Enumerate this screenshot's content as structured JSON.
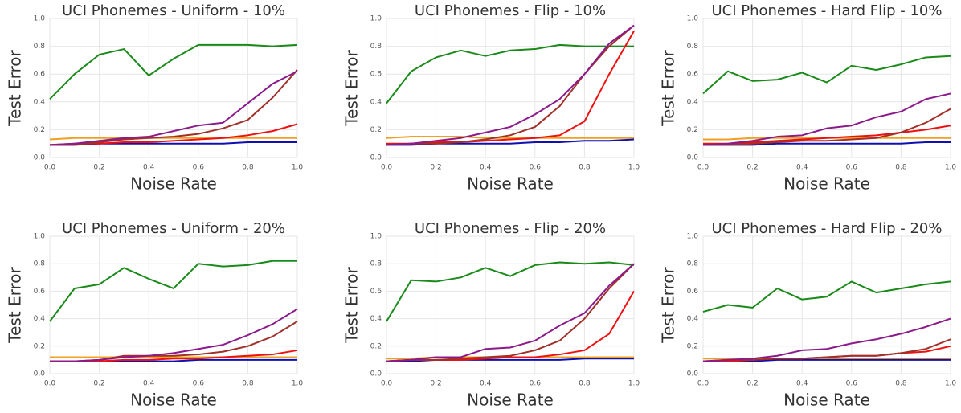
{
  "chart_data": [
    {
      "type": "line",
      "title": "UCI Phonemes - Uniform - 10%",
      "x_label": "Noise Rate",
      "y_label": "Test Error",
      "x": [
        0,
        0.1,
        0.2,
        0.3,
        0.4,
        0.5,
        0.6,
        0.7,
        0.8,
        0.9,
        1
      ],
      "xlim": [
        0,
        1
      ],
      "xticks": [
        {
          "value": 0,
          "label": "0.0"
        },
        0.2,
        0.4,
        0.6,
        0.8,
        {
          "value": 1,
          "label": "1.0"
        }
      ],
      "ylim": [
        0,
        1
      ],
      "yticks": [
        {
          "value": 0,
          "label": "0.0"
        },
        0.2,
        0.4,
        0.6,
        0.8,
        {
          "value": 1,
          "label": "1.0"
        }
      ],
      "grid": true,
      "series": [
        {
          "color": "#1a8a1a",
          "values": [
            0.42,
            0.6,
            0.74,
            0.78,
            0.59,
            0.71,
            0.81,
            0.81,
            0.81,
            0.8,
            0.81
          ]
        },
        {
          "color": "#f0a020",
          "values": [
            0.13,
            0.14,
            0.14,
            0.14,
            0.14,
            0.14,
            0.14,
            0.14,
            0.14,
            0.14,
            0.14
          ]
        },
        {
          "color": "#1010b0",
          "values": [
            0.09,
            0.09,
            0.1,
            0.1,
            0.1,
            0.1,
            0.1,
            0.1,
            0.11,
            0.11,
            0.11
          ]
        },
        {
          "color": "#ee1111",
          "values": [
            0.09,
            0.1,
            0.1,
            0.11,
            0.11,
            0.12,
            0.13,
            0.14,
            0.16,
            0.19,
            0.24
          ]
        },
        {
          "color": "#a0302a",
          "values": [
            0.09,
            0.09,
            0.11,
            0.13,
            0.14,
            0.15,
            0.17,
            0.21,
            0.27,
            0.43,
            0.63
          ]
        },
        {
          "color": "#8b1a8b",
          "values": [
            0.09,
            0.1,
            0.12,
            0.14,
            0.15,
            0.19,
            0.23,
            0.25,
            0.39,
            0.53,
            0.62
          ]
        }
      ]
    },
    {
      "type": "line",
      "title": "UCI Phonemes - Flip - 10%",
      "x_label": "Noise Rate",
      "y_label": "Test Error",
      "x": [
        0,
        0.1,
        0.2,
        0.3,
        0.4,
        0.5,
        0.6,
        0.7,
        0.8,
        0.9,
        1
      ],
      "xlim": [
        0,
        1
      ],
      "xticks": [
        {
          "value": 0,
          "label": "0.0"
        },
        0.2,
        0.4,
        0.6,
        0.8,
        {
          "value": 1,
          "label": "1.0"
        }
      ],
      "ylim": [
        0,
        1
      ],
      "yticks": [
        {
          "value": 0,
          "label": "0.0"
        },
        0.2,
        0.4,
        0.6,
        0.8,
        {
          "value": 1,
          "label": "1.0"
        }
      ],
      "grid": true,
      "series": [
        {
          "color": "#1a8a1a",
          "values": [
            0.39,
            0.62,
            0.72,
            0.77,
            0.73,
            0.77,
            0.78,
            0.81,
            0.8,
            0.8,
            0.8
          ]
        },
        {
          "color": "#f0a020",
          "values": [
            0.14,
            0.15,
            0.15,
            0.15,
            0.14,
            0.14,
            0.14,
            0.14,
            0.14,
            0.14,
            0.14
          ]
        },
        {
          "color": "#1010b0",
          "values": [
            0.09,
            0.09,
            0.1,
            0.1,
            0.1,
            0.1,
            0.11,
            0.11,
            0.12,
            0.12,
            0.13
          ]
        },
        {
          "color": "#ee1111",
          "values": [
            0.1,
            0.1,
            0.11,
            0.11,
            0.12,
            0.13,
            0.14,
            0.16,
            0.26,
            0.6,
            0.91
          ]
        },
        {
          "color": "#a0302a",
          "values": [
            0.09,
            0.1,
            0.1,
            0.11,
            0.13,
            0.16,
            0.22,
            0.37,
            0.6,
            0.8,
            0.95
          ]
        },
        {
          "color": "#8b1a8b",
          "values": [
            0.09,
            0.1,
            0.12,
            0.14,
            0.18,
            0.22,
            0.31,
            0.42,
            0.6,
            0.82,
            0.95
          ]
        }
      ]
    },
    {
      "type": "line",
      "title": "UCI Phonemes - Hard Flip - 10%",
      "x_label": "Noise Rate",
      "y_label": "Test Error",
      "x": [
        0,
        0.1,
        0.2,
        0.3,
        0.4,
        0.5,
        0.6,
        0.7,
        0.8,
        0.9,
        1
      ],
      "xlim": [
        0,
        1
      ],
      "xticks": [
        {
          "value": 0,
          "label": "0.0"
        },
        0.2,
        0.4,
        0.6,
        0.8,
        {
          "value": 1,
          "label": "1.0"
        }
      ],
      "ylim": [
        0,
        1
      ],
      "yticks": [
        {
          "value": 0,
          "label": "0.0"
        },
        0.2,
        0.4,
        0.6,
        0.8,
        {
          "value": 1,
          "label": "1.0"
        }
      ],
      "grid": true,
      "series": [
        {
          "color": "#1a8a1a",
          "values": [
            0.46,
            0.62,
            0.55,
            0.56,
            0.61,
            0.54,
            0.66,
            0.63,
            0.67,
            0.72,
            0.73
          ]
        },
        {
          "color": "#f0a020",
          "values": [
            0.13,
            0.13,
            0.14,
            0.14,
            0.14,
            0.14,
            0.14,
            0.14,
            0.14,
            0.14,
            0.14
          ]
        },
        {
          "color": "#1010b0",
          "values": [
            0.09,
            0.09,
            0.09,
            0.1,
            0.1,
            0.1,
            0.1,
            0.1,
            0.1,
            0.11,
            0.11
          ]
        },
        {
          "color": "#ee1111",
          "values": [
            0.1,
            0.1,
            0.11,
            0.12,
            0.13,
            0.14,
            0.15,
            0.16,
            0.18,
            0.2,
            0.23
          ]
        },
        {
          "color": "#a0302a",
          "values": [
            0.09,
            0.09,
            0.1,
            0.11,
            0.12,
            0.12,
            0.13,
            0.14,
            0.18,
            0.25,
            0.35
          ]
        },
        {
          "color": "#8b1a8b",
          "values": [
            0.09,
            0.1,
            0.12,
            0.15,
            0.16,
            0.21,
            0.23,
            0.29,
            0.33,
            0.42,
            0.46
          ]
        }
      ]
    },
    {
      "type": "line",
      "title": "UCI Phonemes - Uniform - 20%",
      "x_label": "Noise Rate",
      "y_label": "Test Error",
      "x": [
        0,
        0.1,
        0.2,
        0.3,
        0.4,
        0.5,
        0.6,
        0.7,
        0.8,
        0.9,
        1
      ],
      "xlim": [
        0,
        1
      ],
      "xticks": [
        {
          "value": 0,
          "label": "0.0"
        },
        0.2,
        0.4,
        0.6,
        0.8,
        {
          "value": 1,
          "label": "1.0"
        }
      ],
      "ylim": [
        0,
        1
      ],
      "yticks": [
        {
          "value": 0,
          "label": "0.0"
        },
        0.2,
        0.4,
        0.6,
        0.8,
        {
          "value": 1,
          "label": "1.0"
        }
      ],
      "grid": true,
      "series": [
        {
          "color": "#1a8a1a",
          "values": [
            0.38,
            0.62,
            0.65,
            0.77,
            0.69,
            0.62,
            0.8,
            0.78,
            0.79,
            0.82,
            0.82
          ]
        },
        {
          "color": "#f0a020",
          "values": [
            0.12,
            0.12,
            0.12,
            0.12,
            0.12,
            0.12,
            0.12,
            0.12,
            0.12,
            0.12,
            0.12
          ]
        },
        {
          "color": "#1010b0",
          "values": [
            0.09,
            0.09,
            0.09,
            0.09,
            0.09,
            0.09,
            0.1,
            0.1,
            0.1,
            0.1,
            0.1
          ]
        },
        {
          "color": "#ee1111",
          "values": [
            0.09,
            0.09,
            0.09,
            0.1,
            0.1,
            0.11,
            0.11,
            0.12,
            0.13,
            0.14,
            0.17
          ]
        },
        {
          "color": "#a0302a",
          "values": [
            0.09,
            0.09,
            0.1,
            0.13,
            0.13,
            0.13,
            0.14,
            0.16,
            0.2,
            0.27,
            0.38
          ]
        },
        {
          "color": "#8b1a8b",
          "values": [
            0.09,
            0.09,
            0.1,
            0.12,
            0.13,
            0.15,
            0.18,
            0.21,
            0.28,
            0.36,
            0.47
          ]
        }
      ]
    },
    {
      "type": "line",
      "title": "UCI Phonemes - Flip - 20%",
      "x_label": "Noise Rate",
      "y_label": "Test Error",
      "x": [
        0,
        0.1,
        0.2,
        0.3,
        0.4,
        0.5,
        0.6,
        0.7,
        0.8,
        0.9,
        1
      ],
      "xlim": [
        0,
        1
      ],
      "xticks": [
        {
          "value": 0,
          "label": "0.0"
        },
        0.2,
        0.4,
        0.6,
        0.8,
        {
          "value": 1,
          "label": "1.0"
        }
      ],
      "ylim": [
        0,
        1
      ],
      "yticks": [
        {
          "value": 0,
          "label": "0.0"
        },
        0.2,
        0.4,
        0.6,
        0.8,
        {
          "value": 1,
          "label": "1.0"
        }
      ],
      "grid": true,
      "series": [
        {
          "color": "#1a8a1a",
          "values": [
            0.38,
            0.68,
            0.67,
            0.7,
            0.77,
            0.71,
            0.79,
            0.81,
            0.8,
            0.81,
            0.79
          ]
        },
        {
          "color": "#f0a020",
          "values": [
            0.11,
            0.11,
            0.12,
            0.12,
            0.12,
            0.12,
            0.12,
            0.12,
            0.12,
            0.12,
            0.12
          ]
        },
        {
          "color": "#1010b0",
          "values": [
            0.09,
            0.09,
            0.1,
            0.1,
            0.1,
            0.1,
            0.1,
            0.1,
            0.11,
            0.11,
            0.11
          ]
        },
        {
          "color": "#ee1111",
          "values": [
            0.09,
            0.1,
            0.1,
            0.1,
            0.11,
            0.12,
            0.12,
            0.14,
            0.17,
            0.29,
            0.6
          ]
        },
        {
          "color": "#a0302a",
          "values": [
            0.09,
            0.1,
            0.1,
            0.11,
            0.12,
            0.13,
            0.17,
            0.24,
            0.4,
            0.62,
            0.8
          ]
        },
        {
          "color": "#8b1a8b",
          "values": [
            0.09,
            0.1,
            0.12,
            0.12,
            0.18,
            0.19,
            0.24,
            0.35,
            0.44,
            0.64,
            0.8
          ]
        }
      ]
    },
    {
      "type": "line",
      "title": "UCI Phonemes - Hard Flip - 20%",
      "x_label": "Noise Rate",
      "y_label": "Test Error",
      "x": [
        0,
        0.1,
        0.2,
        0.3,
        0.4,
        0.5,
        0.6,
        0.7,
        0.8,
        0.9,
        1
      ],
      "xlim": [
        0,
        1
      ],
      "xticks": [
        {
          "value": 0,
          "label": "0.0"
        },
        0.2,
        0.4,
        0.6,
        0.8,
        {
          "value": 1,
          "label": "1.0"
        }
      ],
      "ylim": [
        0,
        1
      ],
      "yticks": [
        {
          "value": 0,
          "label": "0.0"
        },
        0.2,
        0.4,
        0.6,
        0.8,
        {
          "value": 1,
          "label": "1.0"
        }
      ],
      "grid": true,
      "series": [
        {
          "color": "#1a8a1a",
          "values": [
            0.45,
            0.5,
            0.48,
            0.62,
            0.54,
            0.56,
            0.67,
            0.59,
            0.62,
            0.65,
            0.67
          ]
        },
        {
          "color": "#f0a020",
          "values": [
            0.11,
            0.11,
            0.11,
            0.11,
            0.11,
            0.11,
            0.11,
            0.11,
            0.11,
            0.11,
            0.11
          ]
        },
        {
          "color": "#1010b0",
          "values": [
            0.09,
            0.09,
            0.09,
            0.1,
            0.1,
            0.1,
            0.1,
            0.1,
            0.1,
            0.1,
            0.1
          ]
        },
        {
          "color": "#ee1111",
          "values": [
            0.09,
            0.09,
            0.1,
            0.11,
            0.11,
            0.12,
            0.13,
            0.13,
            0.15,
            0.16,
            0.2
          ]
        },
        {
          "color": "#a0302a",
          "values": [
            0.09,
            0.1,
            0.1,
            0.11,
            0.11,
            0.12,
            0.13,
            0.13,
            0.15,
            0.18,
            0.25
          ]
        },
        {
          "color": "#8b1a8b",
          "values": [
            0.09,
            0.1,
            0.11,
            0.13,
            0.17,
            0.18,
            0.22,
            0.25,
            0.29,
            0.34,
            0.4
          ]
        }
      ]
    }
  ]
}
